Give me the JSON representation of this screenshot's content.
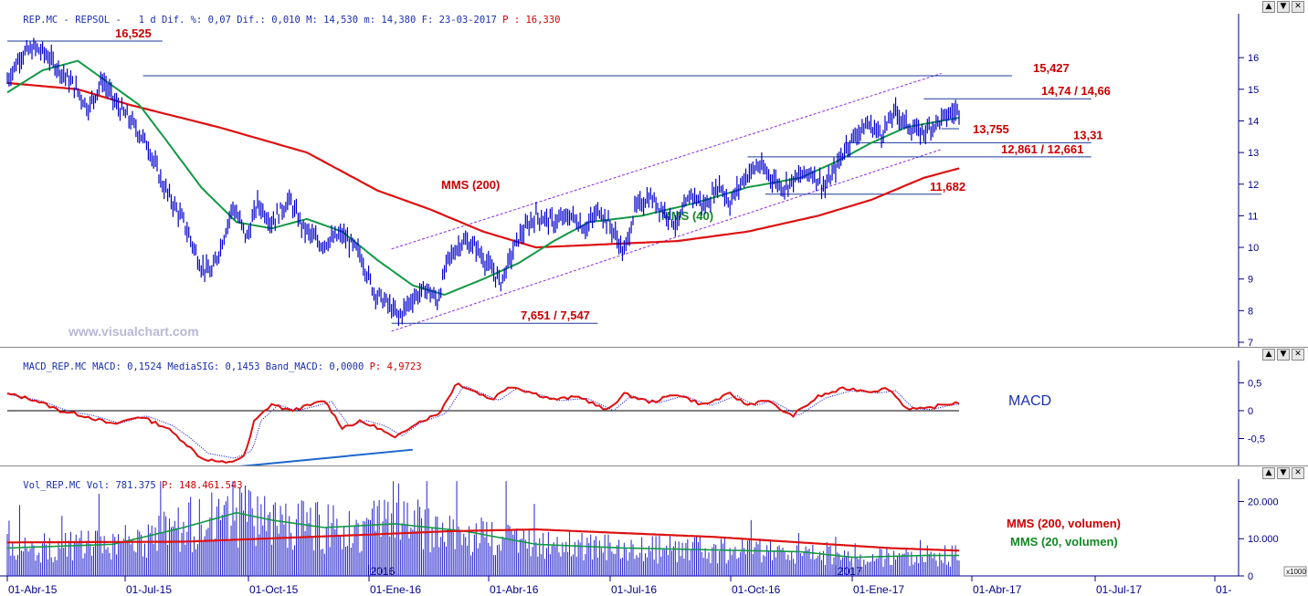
{
  "price_header": {
    "ticker": "REP.MC",
    "name": "REPSOL",
    "period": "1 d",
    "dif_pct_label": "Dif. %:",
    "dif_pct": "0,07",
    "dif_label": "Dif.:",
    "dif": "0,010",
    "max_label": "M:",
    "max": "14,530",
    "min_label": "m:",
    "min": "14,380",
    "date_label": "F:",
    "date": "23-03-2017",
    "p_label": "P :",
    "p": "16,330"
  },
  "macd_header": {
    "text": "MACD_REP.MC MACD: 0,1524 MediaSIG: 0,1453 Band_MACD: 0,0000",
    "p_label": "P:",
    "p": "4,9723"
  },
  "vol_header": {
    "text": "Vol_REP.MC Vol: 781.375",
    "p_label": "P:",
    "p": "148.461.543"
  },
  "window_buttons": [
    "▲",
    "▼",
    "✕"
  ],
  "colors": {
    "price": "#0000cc",
    "mms200": "#dd1111",
    "mms40": "#119944",
    "levels": "#1a3a9a",
    "label_red": "#cc0000",
    "label_green": "#118822",
    "macd": "#dd1111",
    "signal": "#0000cc",
    "trendline": "#1a66cc",
    "volume": "#2222cc"
  },
  "annotations": {
    "watermark": "www.visualchart.com",
    "mms200": "MMS (200)",
    "mms40": "MMS (40)",
    "macd": "MACD",
    "vol_mms200": "MMS (200, volumen)",
    "vol_mms20": "MMS (20, volumen)",
    "x1000": "x1000"
  },
  "chart_data": [
    {
      "type": "line",
      "title": "REP.MC - REPSOL",
      "ylim": [
        7,
        16.9
      ],
      "y_ticks": [
        "16",
        "15",
        "14",
        "13",
        "12",
        "11",
        "10",
        "9",
        "8",
        "7"
      ],
      "series_names": [
        "Price",
        "MMS (200)",
        "MMS (40)"
      ],
      "price_anchors": [
        [
          0,
          15.3
        ],
        [
          8,
          16.1
        ],
        [
          16,
          16.3
        ],
        [
          22,
          16.1
        ],
        [
          30,
          15.6
        ],
        [
          38,
          15.1
        ],
        [
          46,
          14.4
        ],
        [
          54,
          15.3
        ],
        [
          62,
          14.5
        ],
        [
          70,
          14.0
        ],
        [
          80,
          13.2
        ],
        [
          88,
          12.0
        ],
        [
          100,
          10.8
        ],
        [
          110,
          9.4
        ],
        [
          116,
          9.2
        ],
        [
          122,
          10.2
        ],
        [
          128,
          11.3
        ],
        [
          136,
          10.3
        ],
        [
          142,
          11.4
        ],
        [
          150,
          10.8
        ],
        [
          160,
          11.5
        ],
        [
          168,
          10.6
        ],
        [
          178,
          10.1
        ],
        [
          190,
          10.4
        ],
        [
          200,
          9.8
        ],
        [
          208,
          8.6
        ],
        [
          216,
          8.2
        ],
        [
          222,
          7.8
        ],
        [
          230,
          8.4
        ],
        [
          238,
          8.7
        ],
        [
          244,
          8.3
        ],
        [
          250,
          9.6
        ],
        [
          258,
          10.2
        ],
        [
          266,
          10.0
        ],
        [
          272,
          9.5
        ],
        [
          280,
          8.9
        ],
        [
          290,
          10.3
        ],
        [
          300,
          11.0
        ],
        [
          310,
          10.8
        ],
        [
          320,
          11.0
        ],
        [
          328,
          10.6
        ],
        [
          336,
          11.2
        ],
        [
          344,
          10.5
        ],
        [
          350,
          9.8
        ],
        [
          356,
          11.2
        ],
        [
          364,
          11.6
        ],
        [
          372,
          11.2
        ],
        [
          380,
          10.7
        ],
        [
          388,
          11.7
        ],
        [
          396,
          11.3
        ],
        [
          404,
          12.0
        ],
        [
          410,
          11.4
        ],
        [
          418,
          12.2
        ],
        [
          426,
          12.6
        ],
        [
          432,
          12.3
        ],
        [
          440,
          11.9
        ],
        [
          448,
          12.2
        ],
        [
          456,
          12.4
        ],
        [
          464,
          11.9
        ],
        [
          470,
          12.5
        ],
        [
          476,
          13.2
        ],
        [
          482,
          13.6
        ],
        [
          488,
          13.9
        ],
        [
          496,
          13.6
        ],
        [
          504,
          14.3
        ],
        [
          510,
          13.9
        ],
        [
          518,
          13.6
        ],
        [
          526,
          13.9
        ],
        [
          534,
          14.2
        ],
        [
          540,
          14.35
        ]
      ],
      "mms200_anchors": [
        [
          0,
          15.2
        ],
        [
          40,
          15.0
        ],
        [
          70,
          14.5
        ],
        [
          120,
          13.8
        ],
        [
          170,
          13.0
        ],
        [
          210,
          11.8
        ],
        [
          240,
          11.2
        ],
        [
          270,
          10.5
        ],
        [
          300,
          10.0
        ],
        [
          340,
          10.1
        ],
        [
          380,
          10.2
        ],
        [
          420,
          10.5
        ],
        [
          460,
          11.0
        ],
        [
          490,
          11.5
        ],
        [
          520,
          12.2
        ],
        [
          540,
          12.5
        ]
      ],
      "mms40_anchors": [
        [
          0,
          14.9
        ],
        [
          20,
          15.6
        ],
        [
          40,
          15.9
        ],
        [
          60,
          15.1
        ],
        [
          75,
          14.5
        ],
        [
          90,
          13.4
        ],
        [
          110,
          11.9
        ],
        [
          130,
          10.8
        ],
        [
          150,
          10.6
        ],
        [
          170,
          10.9
        ],
        [
          190,
          10.5
        ],
        [
          210,
          9.6
        ],
        [
          230,
          8.8
        ],
        [
          248,
          8.5
        ],
        [
          270,
          9.0
        ],
        [
          290,
          9.5
        ],
        [
          310,
          10.2
        ],
        [
          330,
          10.8
        ],
        [
          360,
          11.0
        ],
        [
          390,
          11.4
        ],
        [
          420,
          11.9
        ],
        [
          450,
          12.2
        ],
        [
          470,
          12.7
        ],
        [
          490,
          13.3
        ],
        [
          510,
          13.8
        ],
        [
          530,
          14.0
        ],
        [
          540,
          14.1
        ]
      ],
      "levels": [
        {
          "label": "16,525",
          "value": 16.525,
          "from": 0,
          "to": 88
        },
        {
          "label": "15,427",
          "value": 15.427,
          "from": 77,
          "to": 570
        },
        {
          "label": "14,74 / 14,66",
          "value": 14.7,
          "from": 520,
          "to": 615
        },
        {
          "label": "13,755",
          "value": 13.755,
          "from": 530,
          "to": 540
        },
        {
          "label": "13,31",
          "value": 13.31,
          "from": 475,
          "to": 615
        },
        {
          "label": "12,861 / 12,661",
          "value": 12.861,
          "from": 420,
          "to": 615
        },
        {
          "label": "11,682",
          "value": 11.682,
          "from": 430,
          "to": 530
        },
        {
          "label": "7,651 / 7,547",
          "value": 7.6,
          "from": 218,
          "to": 335
        }
      ],
      "channel": {
        "upper": [
          [
            218,
            9.95
          ],
          [
            530,
            15.5
          ]
        ],
        "lower": [
          [
            218,
            7.35
          ],
          [
            530,
            13.1
          ]
        ]
      }
    },
    {
      "type": "line",
      "title": "MACD_REP.MC",
      "ylim": [
        -1.0,
        0.9
      ],
      "y_ticks": [
        "0,5",
        "0",
        "-0,5"
      ],
      "series_names": [
        "MACD",
        "MediaSIG"
      ],
      "macd_anchors": [
        [
          0,
          0.3
        ],
        [
          15,
          0.2
        ],
        [
          30,
          0.0
        ],
        [
          45,
          -0.1
        ],
        [
          60,
          -0.25
        ],
        [
          75,
          -0.1
        ],
        [
          90,
          -0.3
        ],
        [
          100,
          -0.55
        ],
        [
          110,
          -0.85
        ],
        [
          125,
          -0.95
        ],
        [
          135,
          -0.8
        ],
        [
          140,
          -0.2
        ],
        [
          150,
          0.12
        ],
        [
          160,
          0.0
        ],
        [
          170,
          0.08
        ],
        [
          180,
          0.18
        ],
        [
          190,
          -0.3
        ],
        [
          200,
          -0.2
        ],
        [
          210,
          -0.3
        ],
        [
          220,
          -0.5
        ],
        [
          230,
          -0.25
        ],
        [
          245,
          -0.05
        ],
        [
          255,
          0.5
        ],
        [
          265,
          0.35
        ],
        [
          275,
          0.2
        ],
        [
          285,
          0.45
        ],
        [
          295,
          0.35
        ],
        [
          310,
          0.2
        ],
        [
          325,
          0.25
        ],
        [
          340,
          0.0
        ],
        [
          350,
          0.3
        ],
        [
          365,
          0.15
        ],
        [
          380,
          0.3
        ],
        [
          395,
          0.1
        ],
        [
          410,
          0.3
        ],
        [
          420,
          0.1
        ],
        [
          430,
          0.2
        ],
        [
          445,
          -0.1
        ],
        [
          460,
          0.25
        ],
        [
          475,
          0.4
        ],
        [
          490,
          0.35
        ],
        [
          500,
          0.4
        ],
        [
          510,
          0.05
        ],
        [
          520,
          0.02
        ],
        [
          530,
          0.1
        ],
        [
          540,
          0.15
        ]
      ],
      "trendline": [
        [
          132,
          -1.0
        ],
        [
          230,
          -0.7
        ]
      ]
    },
    {
      "type": "bar",
      "title": "Vol_REP.MC",
      "ylim": [
        0,
        26000
      ],
      "y_ticks": [
        "20.000",
        "10.000",
        "0"
      ],
      "series_names": [
        "Vol",
        "MMS (200, volumen)",
        "MMS (20, volumen)"
      ],
      "vol_mms200_anchors": [
        [
          0,
          9000
        ],
        [
          100,
          9200
        ],
        [
          200,
          11000
        ],
        [
          250,
          12000
        ],
        [
          300,
          12500
        ],
        [
          350,
          11500
        ],
        [
          400,
          10500
        ],
        [
          450,
          9000
        ],
        [
          500,
          7500
        ],
        [
          540,
          6800
        ]
      ],
      "vol_mms20_anchors": [
        [
          0,
          7500
        ],
        [
          60,
          8500
        ],
        [
          100,
          13000
        ],
        [
          130,
          17000
        ],
        [
          150,
          15000
        ],
        [
          180,
          13000
        ],
        [
          220,
          14000
        ],
        [
          260,
          12000
        ],
        [
          300,
          8500
        ],
        [
          350,
          7500
        ],
        [
          400,
          7000
        ],
        [
          450,
          6500
        ],
        [
          480,
          5000
        ],
        [
          520,
          5500
        ],
        [
          540,
          5500
        ]
      ]
    }
  ],
  "dates": [
    "01-Abr-15",
    "01-Jul-15",
    "01-Oct-15",
    "01-Ene-16",
    "01-Abr-16",
    "01-Jul-16",
    "01-Oct-16",
    "01-Ene-17",
    "01-Abr-17",
    "01-Jul-17",
    "01-"
  ],
  "year_markers": [
    "2016",
    "2017"
  ]
}
